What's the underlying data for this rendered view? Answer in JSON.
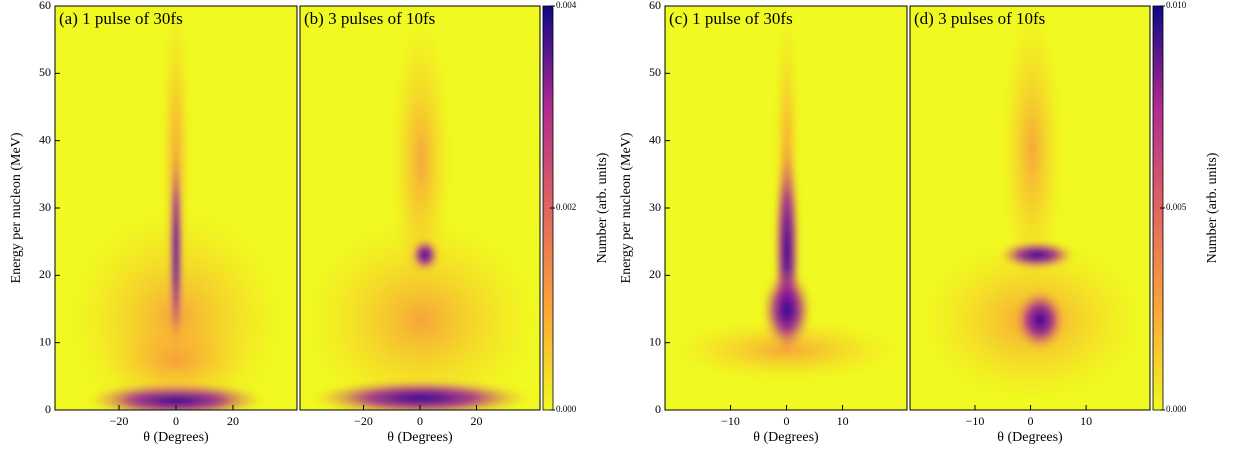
{
  "chart_data": [
    {
      "type": "heatmap",
      "title": "(a) 1 pulse of 30fs",
      "xlabel": "θ (Degrees)",
      "ylabel": "Energy per nucleon (MeV)",
      "xlim": [
        -42.5,
        42.5
      ],
      "ylim": [
        0,
        60
      ],
      "xticks": [
        {
          "value": -20,
          "label": "−20"
        },
        0,
        20
      ],
      "yticks": [
        0,
        10,
        20,
        30,
        40,
        50,
        60
      ]
    },
    {
      "type": "heatmap",
      "title": "(b) 3 pulses of 10fs",
      "xlabel": "θ (Degrees)",
      "xlim": [
        -42.5,
        42.5
      ],
      "ylim": [
        0,
        60
      ],
      "xticks": [
        {
          "value": -20,
          "label": "−20"
        },
        0,
        20
      ],
      "colorbar": {
        "label": "Number (arb. units)",
        "lim": [
          0,
          0.004
        ],
        "ticks": [
          {
            "value": 0,
            "label": "0.000"
          },
          {
            "value": 0.002,
            "label": "0.002"
          },
          {
            "value": 0.004,
            "label": "0.004"
          }
        ]
      }
    },
    {
      "type": "heatmap",
      "title": "(c) 1 pulse of 30fs",
      "xlabel": "θ (Degrees)",
      "ylabel": "Energy per nucleon (MeV)",
      "xlim": [
        -21.7,
        21.5
      ],
      "ylim": [
        0,
        60
      ],
      "xticks": [
        {
          "value": -10,
          "label": "−10"
        },
        0,
        10
      ],
      "yticks": [
        0,
        10,
        20,
        30,
        40,
        50,
        60
      ]
    },
    {
      "type": "heatmap",
      "title": "(d) 3 pulses of 10fs",
      "xlabel": "θ (Degrees)",
      "xlim": [
        -21.7,
        21.5
      ],
      "ylim": [
        0,
        60
      ],
      "xticks": [
        {
          "value": -10,
          "label": "−10"
        },
        0,
        10
      ],
      "colorbar": {
        "label": "Number (arb. units)",
        "lim": [
          0,
          0.01
        ],
        "ticks": [
          {
            "value": 0,
            "label": "0.000"
          },
          {
            "value": 0.005,
            "label": "0.005"
          },
          {
            "value": 0.01,
            "label": "0.010"
          }
        ]
      }
    }
  ]
}
